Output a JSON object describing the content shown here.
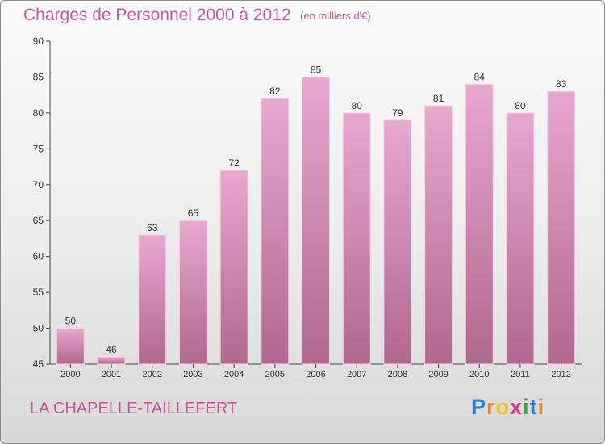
{
  "header": {
    "title": "Charges de Personnel 2000 à 2012",
    "unit": "(en milliers d'€)"
  },
  "footer": {
    "commune": "LA CHAPELLE-TAILLEFERT",
    "logo": {
      "letters": [
        "P",
        "r",
        "o",
        "x",
        "i",
        "t",
        "i"
      ],
      "colors": [
        "#2a7fd4",
        "#e8872a",
        "#e8c42a",
        "#d43a8a",
        "#3aaa3a",
        "#2a7fd4",
        "#e8872a"
      ]
    }
  },
  "colors": {
    "text": "#c0589a",
    "bar_top": "#e8a8d0",
    "bar_bottom": "#b0688f",
    "axis": "#444444"
  },
  "chart_data": {
    "type": "bar",
    "categories": [
      "2000",
      "2001",
      "2002",
      "2003",
      "2004",
      "2005",
      "2006",
      "2007",
      "2008",
      "2009",
      "2010",
      "2011",
      "2012"
    ],
    "values": [
      50,
      46,
      63,
      65,
      72,
      82,
      85,
      80,
      79,
      81,
      84,
      80,
      83
    ],
    "ylim": [
      45,
      90
    ],
    "yticks": [
      45,
      50,
      55,
      60,
      65,
      70,
      75,
      80,
      85,
      90
    ],
    "grid": false,
    "data_labels": true
  }
}
